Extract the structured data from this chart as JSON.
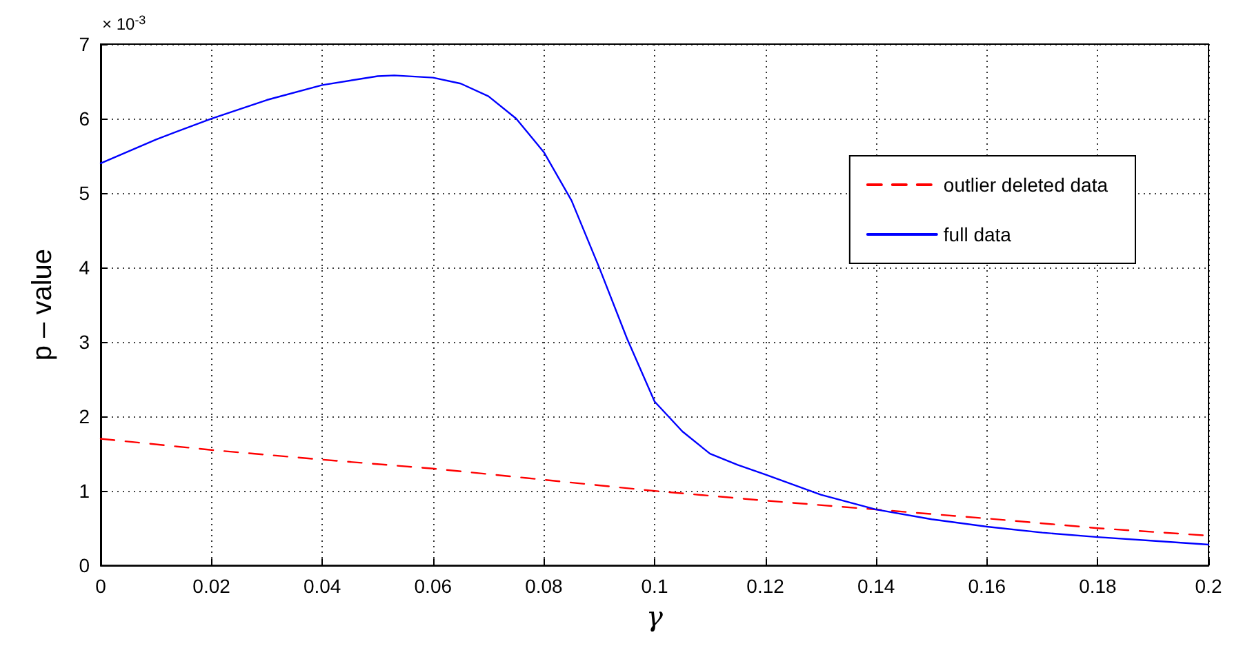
{
  "chart_data": {
    "type": "line",
    "xlabel": "γ",
    "ylabel": "p – value",
    "annotations": [
      "× 10$^{-3}$"
    ],
    "x": [
      0,
      0.01,
      0.02,
      0.03,
      0.04,
      0.05,
      0.053,
      0.06,
      0.065,
      0.07,
      0.075,
      0.08,
      0.085,
      0.09,
      0.095,
      0.1,
      0.105,
      0.11,
      0.115,
      0.12,
      0.13,
      0.14,
      0.15,
      0.16,
      0.17,
      0.18,
      0.19,
      0.2
    ],
    "series": [
      {
        "name": "outlier deleted data",
        "color": "#ff0000",
        "line_style": "dashed",
        "x": [
          0,
          0.02,
          0.04,
          0.06,
          0.08,
          0.1,
          0.12,
          0.14,
          0.16,
          0.18,
          0.2
        ],
        "values": [
          1.7,
          1.55,
          1.42,
          1.3,
          1.15,
          1.0,
          0.87,
          0.75,
          0.63,
          0.5,
          0.4
        ]
      },
      {
        "name": "full data",
        "color": "#0000ff",
        "line_style": "solid",
        "values": [
          5.4,
          5.72,
          6.0,
          6.25,
          6.45,
          6.57,
          6.58,
          6.55,
          6.47,
          6.3,
          6.0,
          5.55,
          4.9,
          4.0,
          3.05,
          2.2,
          1.8,
          1.5,
          1.35,
          1.22,
          0.95,
          0.75,
          0.62,
          0.52,
          0.44,
          0.38,
          0.33,
          0.28
        ]
      }
    ],
    "xlim": [
      0,
      0.2
    ],
    "xticks": [
      0,
      0.02,
      0.04,
      0.06,
      0.08,
      0.1,
      0.12,
      0.14,
      0.16,
      0.18,
      0.2
    ],
    "ylim": [
      0,
      7
    ],
    "yticks": [
      0,
      1,
      2,
      3,
      4,
      5,
      6,
      7
    ],
    "grid": true,
    "legend": "right",
    "marker": "none"
  }
}
